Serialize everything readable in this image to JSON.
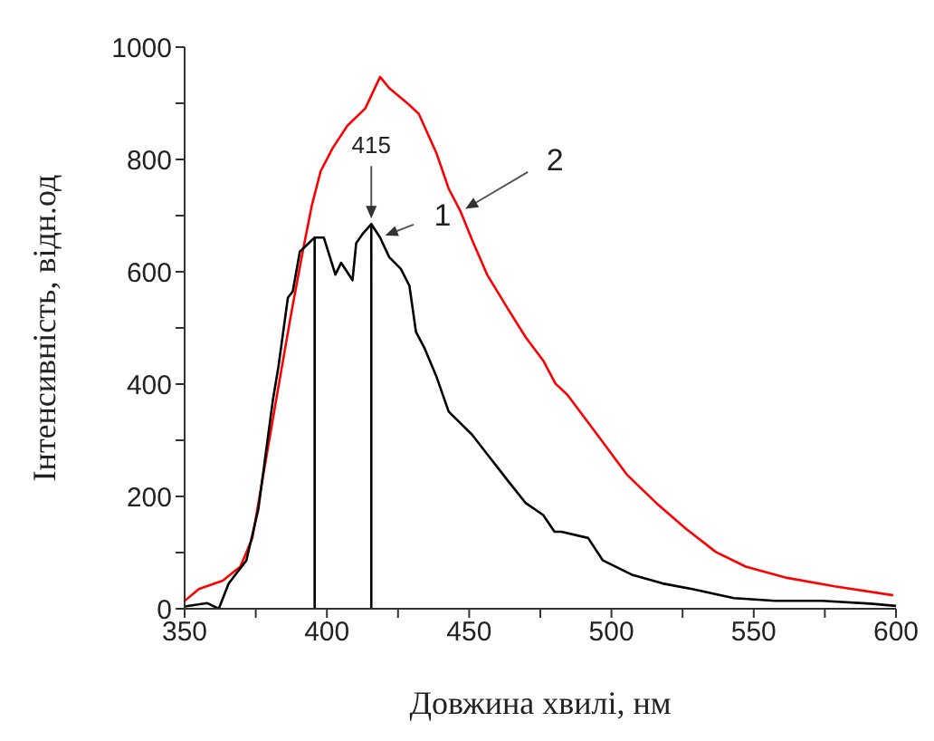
{
  "chart_data": {
    "type": "line",
    "xlabel": "Довжина хвилі, нм",
    "ylabel": "Інтенсивність, відн.од",
    "xlim": [
      350,
      600
    ],
    "xticks": [
      350,
      {
        "value": 375,
        "label": null
      },
      400,
      {
        "value": 425,
        "label": null
      },
      450,
      {
        "value": 475,
        "label": null
      },
      500,
      {
        "value": 525,
        "label": null
      },
      550,
      {
        "value": 575,
        "label": null
      },
      600
    ],
    "ylim": [
      0,
      1000
    ],
    "yticks": [
      0,
      {
        "value": 100,
        "label": null
      },
      200,
      {
        "value": 300,
        "label": null
      },
      400,
      {
        "value": 500,
        "label": null
      },
      600,
      {
        "value": 700,
        "label": null
      },
      800,
      {
        "value": 900,
        "label": null
      },
      1000
    ],
    "grid": false,
    "legend": false,
    "marker": "none",
    "line_style": "solid",
    "series": [
      {
        "color": "#ff0000",
        "x": [
          350,
          355,
          363.4,
          369.6,
          373.8,
          378,
          383.2,
          387.4,
          391.5,
          394.7,
          397.8,
          402,
          407.2,
          413.5,
          418.7,
          421.9,
          428.1,
          432.3,
          438.6,
          442.8,
          447,
          451,
          456.3,
          463.6,
          469.9,
          476,
          480.3,
          484.5,
          495,
          505.4,
          515.8,
          526.3,
          536.7,
          547.2,
          561.7,
          578.4,
          599
        ],
        "values": [
          14,
          35,
          50,
          75,
          126,
          249,
          402,
          524,
          636,
          718,
          779,
          820,
          860,
          891,
          947,
          927,
          901,
          881,
          810,
          748,
          707,
          657,
          595,
          534,
          483,
          442,
          401,
          381,
          310,
          239,
          188,
          142,
          101,
          75,
          55,
          40,
          24
        ]
      },
      {
        "color": "#000000",
        "x": [
          350,
          358,
          362,
          365.5,
          371.7,
          375.9,
          381,
          383,
          386.3,
          388,
          390.5,
          392.6,
          395.7,
          395.7,
          395.7,
          398.9,
          403,
          405,
          409,
          410.3,
          412.5,
          415.6,
          415.6,
          415.6,
          418.7,
          421.9,
          426,
          429,
          431.3,
          434.4,
          438.6,
          442.8,
          447,
          451,
          457.3,
          463.6,
          469.9,
          476,
          480,
          482.4,
          491.8,
          497,
          507.5,
          518,
          528.4,
          543,
          557.6,
          574,
          591,
          600
        ],
        "values": [
          4,
          10,
          0,
          45,
          86,
          177,
          371,
          432,
          554,
          565,
          636,
          646,
          661,
          0,
          661,
          661,
          595,
          616,
          585,
          651,
          667,
          685,
          0,
          685,
          661,
          626,
          605,
          575,
          493,
          463,
          412,
          351,
          330,
          310,
          269,
          228,
          188,
          167,
          137,
          137,
          126,
          86,
          60,
          45,
          35,
          19,
          14,
          14,
          9,
          5
        ]
      }
    ],
    "annotations": [
      {
        "text": "415",
        "x": 415.6,
        "y": 685
      },
      {
        "text": "1",
        "x": 418.7,
        "y": 661
      },
      {
        "text": "2",
        "x": 447,
        "y": 707
      }
    ]
  }
}
